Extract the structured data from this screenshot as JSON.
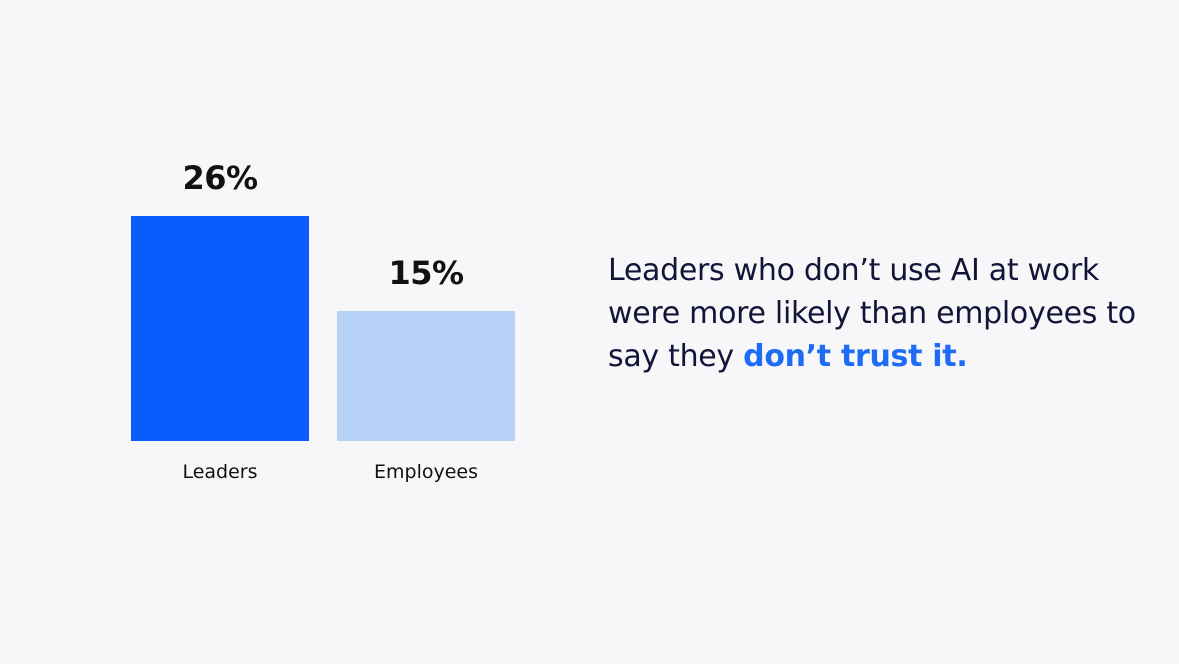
{
  "chart_data": {
    "type": "bar",
    "categories": [
      "Leaders",
      "Employees"
    ],
    "values": [
      26,
      15
    ],
    "value_labels": [
      "26%",
      "15%"
    ],
    "colors": [
      "#0b5cff",
      "#b7d1f7"
    ],
    "ylim": [
      0,
      26
    ],
    "grid": false
  },
  "caption": {
    "text": "Leaders who don’t use AI at work were more likely than employees to say they ",
    "highlight": "don’t trust it.",
    "text_color": "#131538",
    "highlight_color": "#1e6bf5"
  }
}
